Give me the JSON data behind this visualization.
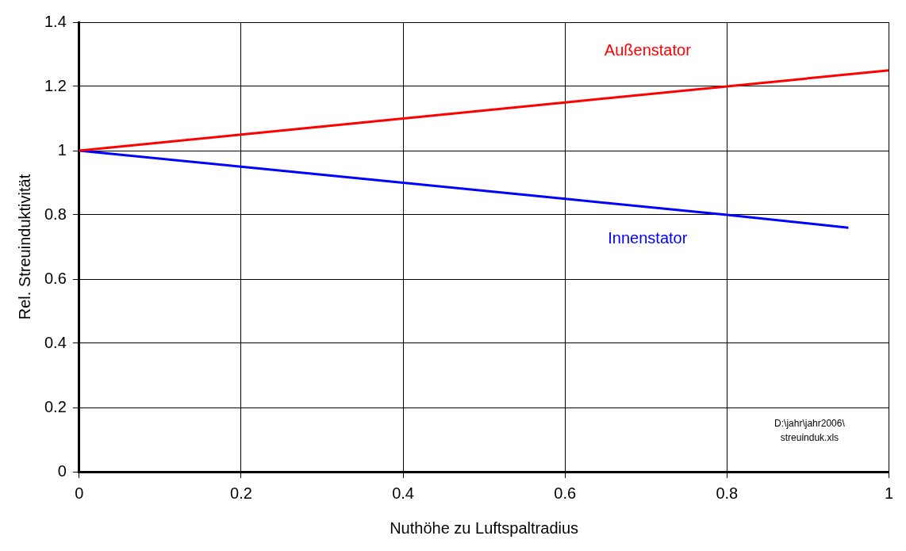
{
  "chart_data": {
    "type": "line",
    "xlabel": "Nuthöhe zu Luftspaltradius",
    "ylabel": "Rel. Streuinduktivität",
    "xlim": [
      0,
      1
    ],
    "xticks": [
      0,
      0.2,
      0.4,
      0.6,
      0.8,
      1
    ],
    "ylim": [
      0,
      1.4
    ],
    "yticks": [
      0,
      0.2,
      0.4,
      0.6,
      0.8,
      1,
      1.2,
      1.4
    ],
    "grid": true,
    "line_style": "solid",
    "marker": "none",
    "series": [
      {
        "name": "Außenstator",
        "color": "#ff0000",
        "x": [
          0,
          0.2,
          0.4,
          0.6,
          0.8,
          1
        ],
        "values": [
          1,
          1.05,
          1.1,
          1.15,
          1.2,
          1.25
        ]
      },
      {
        "name": "Innenstator",
        "color": "#0000ff",
        "x": [
          0,
          0.2,
          0.4,
          0.6,
          0.8,
          0.95
        ],
        "values": [
          1,
          0.95,
          0.9,
          0.85,
          0.8,
          0.76
        ]
      }
    ],
    "annotations": [
      "D:\\jahr\\jahr2006\\\nstreuinduk.xls"
    ]
  }
}
